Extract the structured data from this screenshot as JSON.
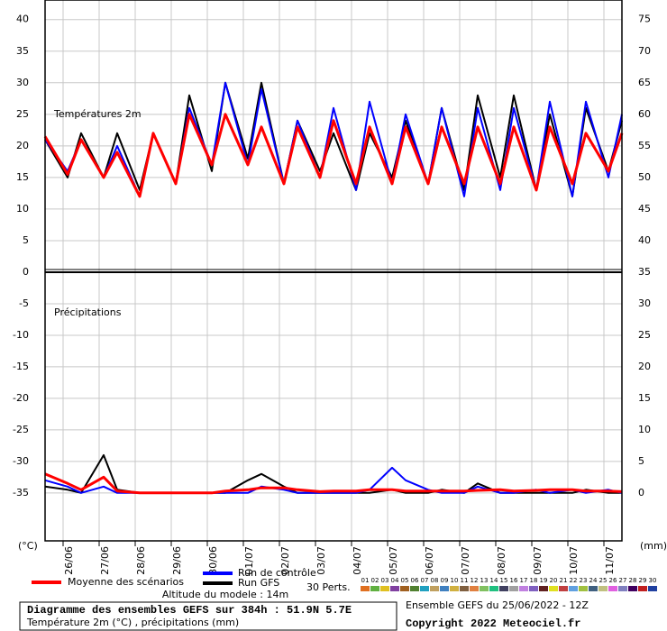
{
  "chart_data": [
    {
      "type": "line",
      "label": "Températures 2m",
      "y_unit": "(°C)",
      "x": [
        0,
        15,
        24,
        39,
        48,
        63,
        72,
        87,
        96,
        111,
        120,
        135,
        144,
        159,
        168,
        183,
        192,
        207,
        216,
        231,
        240,
        255,
        264,
        279,
        288,
        303,
        312,
        327,
        336,
        351,
        360,
        375,
        384
      ],
      "xlim": [
        0,
        384
      ],
      "ylim": [
        0,
        43.1
      ],
      "y2lim": [
        35,
        78.1
      ],
      "yticks": [
        0,
        5,
        10,
        15,
        20,
        25,
        30,
        35,
        40
      ],
      "y2ticks": [
        40,
        45,
        50,
        55,
        60,
        65,
        70,
        75
      ],
      "grid": true,
      "series": [
        {
          "name": "Moyenne des scénarios",
          "color": "#ff0000",
          "width": 3,
          "values": [
            21.5,
            15.5,
            21,
            15,
            19,
            12,
            22,
            14,
            25,
            17,
            25,
            17,
            23,
            14,
            23,
            15,
            24,
            14,
            23,
            14,
            23,
            14,
            23,
            14,
            23,
            14,
            23,
            13,
            23,
            14,
            22,
            16,
            22
          ]
        },
        {
          "name": "Run de contrôle",
          "color": "#0000ff",
          "width": 2,
          "values": [
            21,
            16,
            21,
            15,
            20,
            12,
            22,
            14,
            26,
            17,
            30,
            17,
            29,
            14,
            24,
            15,
            26,
            13,
            27,
            14,
            25,
            14,
            26,
            12,
            26,
            13,
            26,
            13,
            27,
            12,
            27,
            15,
            25
          ]
        },
        {
          "name": "Run GFS",
          "color": "#000000",
          "width": 2,
          "values": [
            21,
            15,
            22,
            15,
            22,
            13,
            22,
            14,
            28,
            16,
            30,
            18,
            30,
            14,
            24,
            16,
            22,
            13,
            22,
            15,
            24,
            14,
            26,
            13,
            28,
            15,
            28,
            13,
            25,
            12,
            26,
            16,
            24
          ]
        }
      ]
    },
    {
      "type": "line",
      "label": "Précipitations",
      "y2_unit": "(mm)",
      "x": [
        0,
        15,
        24,
        39,
        48,
        63,
        72,
        87,
        96,
        111,
        120,
        135,
        144,
        159,
        168,
        183,
        192,
        207,
        216,
        231,
        240,
        255,
        264,
        279,
        288,
        303,
        312,
        327,
        336,
        351,
        360,
        375,
        384
      ],
      "xlim": [
        0,
        384
      ],
      "ylim": [
        -42.6,
        0
      ],
      "y2lim": [
        -7.6,
        35
      ],
      "yticks": [
        -35,
        -30,
        -25,
        -20,
        -15,
        -10,
        -5
      ],
      "y2ticks": [
        0,
        5,
        10,
        15,
        20,
        25,
        30,
        35
      ],
      "grid": true,
      "xticks": [
        {
          "value": 12,
          "label": "26/06"
        },
        {
          "value": 36,
          "label": "27/06"
        },
        {
          "value": 60,
          "label": "28/06"
        },
        {
          "value": 84,
          "label": "29/06"
        },
        {
          "value": 108,
          "label": "30/06"
        },
        {
          "value": 132,
          "label": "01/07"
        },
        {
          "value": 156,
          "label": "02/07"
        },
        {
          "value": 180,
          "label": "03/07"
        },
        {
          "value": 204,
          "label": "04/07"
        },
        {
          "value": 228,
          "label": "05/07"
        },
        {
          "value": 252,
          "label": "06/07"
        },
        {
          "value": 276,
          "label": "07/07"
        },
        {
          "value": 300,
          "label": "08/07"
        },
        {
          "value": 324,
          "label": "09/07"
        },
        {
          "value": 348,
          "label": "10/07"
        },
        {
          "value": 372,
          "label": "11/07"
        }
      ],
      "series": [
        {
          "name": "Moyenne des scénarios",
          "color": "#ff0000",
          "width": 3,
          "axis": "y2",
          "values": [
            3,
            1.5,
            0.5,
            2.5,
            0.3,
            0,
            0,
            0,
            0,
            0,
            0.3,
            0.5,
            0.8,
            0.8,
            0.5,
            0.2,
            0.3,
            0.3,
            0.5,
            0.5,
            0.3,
            0.3,
            0.3,
            0.3,
            0.4,
            0.5,
            0.3,
            0.4,
            0.5,
            0.5,
            0.3,
            0.3,
            0.2
          ]
        },
        {
          "name": "Run de contrôle",
          "color": "#0000ff",
          "width": 2,
          "axis": "y2",
          "values": [
            2,
            1,
            0,
            1,
            0,
            0,
            0,
            0,
            0,
            0,
            0,
            0,
            1,
            0.5,
            0,
            0,
            0,
            0,
            0.5,
            4,
            2,
            0.5,
            0,
            0,
            1,
            0,
            0,
            0.5,
            0,
            0.5,
            0,
            0.5,
            0
          ]
        },
        {
          "name": "Run GFS",
          "color": "#000000",
          "width": 2,
          "axis": "y2",
          "values": [
            1,
            0.5,
            0,
            6,
            0.5,
            0,
            0,
            0,
            0,
            0,
            0,
            2,
            3,
            1,
            0,
            0,
            0,
            0,
            0,
            0.5,
            0,
            0,
            0.5,
            0,
            1.5,
            0,
            0,
            0,
            0,
            0,
            0.5,
            0,
            0
          ]
        }
      ]
    }
  ],
  "legend": {
    "perturbations_label": "30 Perts.",
    "perturbations": [
      {
        "name": "01",
        "color": "#e07020"
      },
      {
        "name": "02",
        "color": "#60b040"
      },
      {
        "name": "03",
        "color": "#e0c020"
      },
      {
        "name": "04",
        "color": "#8040a0"
      },
      {
        "name": "05",
        "color": "#a06020"
      },
      {
        "name": "06",
        "color": "#508030"
      },
      {
        "name": "07",
        "color": "#20a0c0"
      },
      {
        "name": "08",
        "color": "#c0a060"
      },
      {
        "name": "09",
        "color": "#4080c0"
      },
      {
        "name": "10",
        "color": "#d0b040"
      },
      {
        "name": "11",
        "color": "#806040"
      },
      {
        "name": "12",
        "color": "#e08040"
      },
      {
        "name": "13",
        "color": "#80c060"
      },
      {
        "name": "14",
        "color": "#20c080"
      },
      {
        "name": "15",
        "color": "#404060"
      },
      {
        "name": "16",
        "color": "#a0a0a0"
      },
      {
        "name": "17",
        "color": "#c080e0"
      },
      {
        "name": "18",
        "color": "#8060c0"
      },
      {
        "name": "19",
        "color": "#602020"
      },
      {
        "name": "20",
        "color": "#e0e020"
      },
      {
        "name": "21",
        "color": "#c04040"
      },
      {
        "name": "22",
        "color": "#60a0e0"
      },
      {
        "name": "23",
        "color": "#a0c040"
      },
      {
        "name": "24",
        "color": "#406080"
      },
      {
        "name": "25",
        "color": "#c0c080"
      },
      {
        "name": "26",
        "color": "#e060e0"
      },
      {
        "name": "27",
        "color": "#8080c0"
      },
      {
        "name": "28",
        "color": "#400060"
      },
      {
        "name": "29",
        "color": "#c02020"
      },
      {
        "name": "30",
        "color": "#2040a0"
      }
    ],
    "altitude": "Altitude du modele : 14m"
  },
  "footer": {
    "title": "Diagramme des ensembles GEFS sur 384h : 51.9N 5.7E",
    "subtitle": "Température 2m (°C) , précipitations (mm)",
    "run": "Ensemble GEFS du 25/06/2022 - 12Z",
    "copyright": "Copyright 2022 Meteociel.fr"
  }
}
